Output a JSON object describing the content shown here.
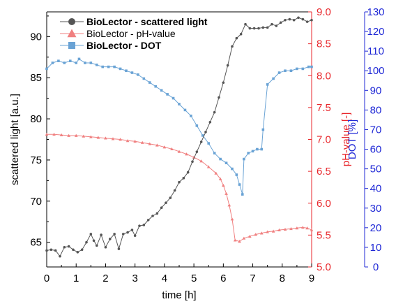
{
  "chart_data": {
    "type": "scatter",
    "xlabel": "time   [h]",
    "xlim": [
      0,
      9
    ],
    "xticks": [
      "0",
      "1",
      "2",
      "3",
      "4",
      "5",
      "6",
      "7",
      "8",
      "9"
    ],
    "axes": {
      "left": {
        "label": "scattered light   [a.u.]",
        "lim": [
          62,
          93
        ],
        "ticks": [
          "65",
          "70",
          "75",
          "80",
          "85",
          "90"
        ],
        "color": "#000000"
      },
      "right1": {
        "label": "pH-value   [-]",
        "lim": [
          5.0,
          9.0
        ],
        "ticks": [
          "5.0",
          "5.5",
          "6.0",
          "6.5",
          "7.0",
          "7.5",
          "8.0",
          "8.5",
          "9.0"
        ],
        "color": "#e8262b"
      },
      "right2": {
        "label": "DOT   [%]",
        "lim": [
          0,
          130
        ],
        "ticks": [
          "0",
          "10",
          "20",
          "30",
          "40",
          "50",
          "60",
          "70",
          "80",
          "90",
          "100",
          "110",
          "120",
          "130"
        ],
        "color": "#1f28d6"
      }
    },
    "legend_position": "top-left",
    "series": [
      {
        "name": "BioLector - scattered light",
        "axis": "left",
        "color": "#555555",
        "marker": "circle",
        "x": [
          0.0,
          0.15,
          0.3,
          0.45,
          0.6,
          0.75,
          0.9,
          1.05,
          1.2,
          1.35,
          1.5,
          1.6,
          1.7,
          1.85,
          2.0,
          2.15,
          2.3,
          2.45,
          2.6,
          2.75,
          2.9,
          3.0,
          3.15,
          3.3,
          3.45,
          3.6,
          3.75,
          3.9,
          4.05,
          4.2,
          4.35,
          4.5,
          4.65,
          4.8,
          4.95,
          5.1,
          5.25,
          5.4,
          5.55,
          5.7,
          5.85,
          6.0,
          6.15,
          6.3,
          6.45,
          6.6,
          6.75,
          6.9,
          7.05,
          7.2,
          7.35,
          7.5,
          7.65,
          7.8,
          7.95,
          8.1,
          8.25,
          8.4,
          8.55,
          8.7,
          8.85,
          9.0
        ],
        "y": [
          64.0,
          64.1,
          64.0,
          63.3,
          64.4,
          64.5,
          64.1,
          63.8,
          64.1,
          65.0,
          66.0,
          65.2,
          64.6,
          65.9,
          64.4,
          65.4,
          66.0,
          64.2,
          66.0,
          66.2,
          66.5,
          65.8,
          67.0,
          67.1,
          67.7,
          68.2,
          68.5,
          69.2,
          69.8,
          70.4,
          71.3,
          72.3,
          72.8,
          73.5,
          74.8,
          76.0,
          77.2,
          78.4,
          79.6,
          80.8,
          82.6,
          84.4,
          86.5,
          88.8,
          89.8,
          90.3,
          91.5,
          91.0,
          91.0,
          91.0,
          91.1,
          91.1,
          91.5,
          91.3,
          91.7,
          92.0,
          92.1,
          92.0,
          92.3,
          92.1,
          91.8,
          92.0
        ]
      },
      {
        "name": "BioLector - pH-value",
        "axis": "right1",
        "color": "#f08080",
        "marker": "triangle",
        "x": [
          0.0,
          0.25,
          0.5,
          0.75,
          1.0,
          1.25,
          1.5,
          1.75,
          2.0,
          2.25,
          2.5,
          2.75,
          3.0,
          3.25,
          3.5,
          3.75,
          4.0,
          4.25,
          4.5,
          4.75,
          5.0,
          5.25,
          5.5,
          5.75,
          5.9,
          6.0,
          6.1,
          6.2,
          6.3,
          6.4,
          6.55,
          6.7,
          6.9,
          7.1,
          7.3,
          7.5,
          7.7,
          7.9,
          8.1,
          8.3,
          8.5,
          8.7,
          8.85,
          9.0
        ],
        "y": [
          7.08,
          7.08,
          7.07,
          7.06,
          7.06,
          7.05,
          7.04,
          7.03,
          7.02,
          7.01,
          7.0,
          6.98,
          6.97,
          6.95,
          6.93,
          6.91,
          6.88,
          6.85,
          6.81,
          6.77,
          6.72,
          6.66,
          6.57,
          6.47,
          6.38,
          6.28,
          6.15,
          5.97,
          5.75,
          5.42,
          5.4,
          5.45,
          5.48,
          5.51,
          5.53,
          5.55,
          5.56,
          5.58,
          5.59,
          5.6,
          5.61,
          5.62,
          5.61,
          5.58
        ]
      },
      {
        "name": "BioLector - DOT",
        "axis": "right2",
        "color": "#6aa3d5",
        "marker": "square",
        "x": [
          0.0,
          0.2,
          0.4,
          0.6,
          0.8,
          1.0,
          1.1,
          1.3,
          1.5,
          1.7,
          1.9,
          2.1,
          2.3,
          2.5,
          2.7,
          2.9,
          3.1,
          3.3,
          3.5,
          3.7,
          3.9,
          4.1,
          4.3,
          4.5,
          4.7,
          4.9,
          5.1,
          5.3,
          5.5,
          5.7,
          5.9,
          6.1,
          6.3,
          6.45,
          6.55,
          6.65,
          6.7,
          6.85,
          7.0,
          7.15,
          7.3,
          7.35,
          7.5,
          7.7,
          7.9,
          8.1,
          8.3,
          8.5,
          8.7,
          8.9,
          9.0
        ],
        "y": [
          101,
          104,
          105,
          104,
          105,
          104,
          106,
          104,
          104,
          103,
          102,
          102,
          102,
          101,
          100,
          99,
          98,
          96,
          94,
          92,
          90,
          88,
          86,
          83,
          80,
          77,
          72,
          67,
          63,
          58,
          55,
          53,
          50,
          47,
          42,
          37,
          55,
          58,
          59,
          60,
          60,
          70,
          93,
          96,
          99,
          100,
          100,
          101,
          101,
          102,
          102
        ]
      }
    ]
  }
}
